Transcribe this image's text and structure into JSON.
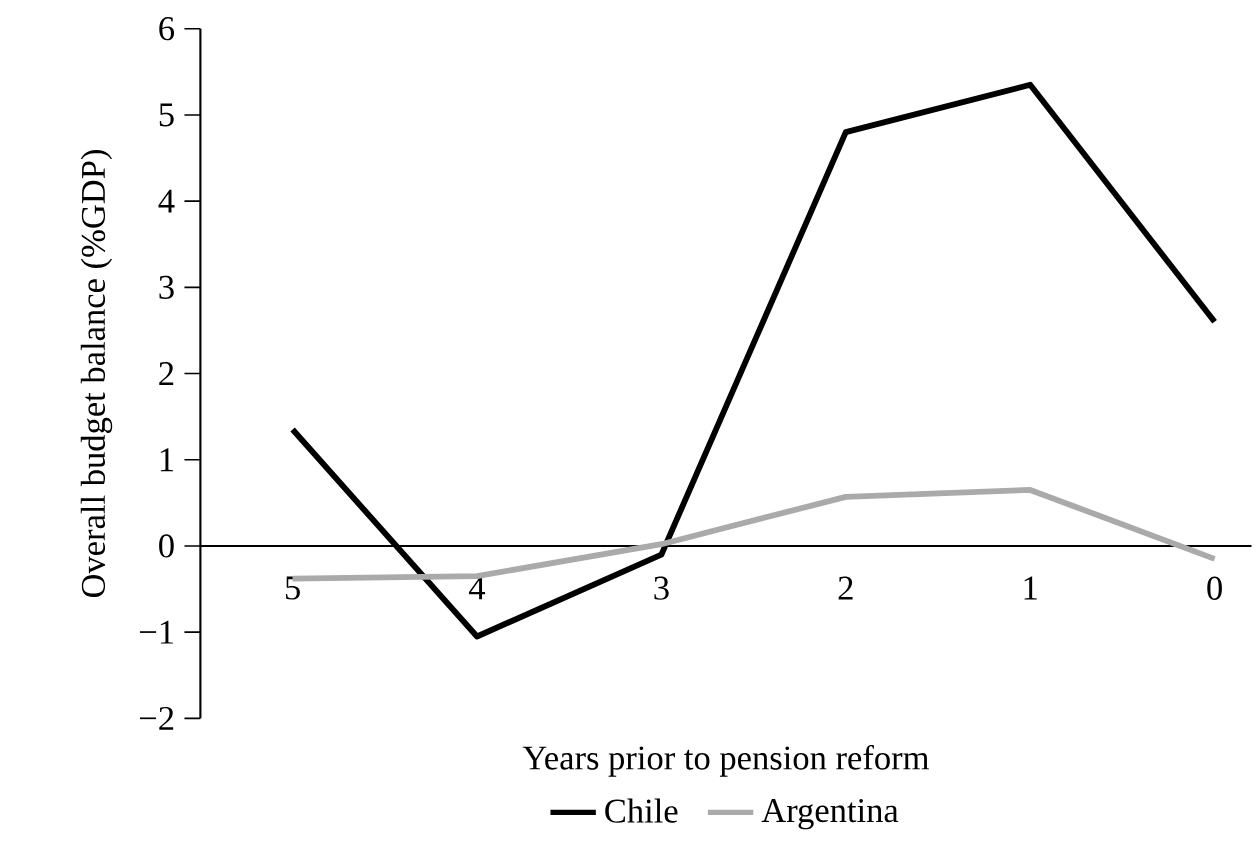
{
  "chart_data": {
    "type": "line",
    "xlabel": "Years prior to pension reform",
    "ylabel": "Overall budget balance (%GDP)",
    "categories": [
      "5",
      "4",
      "3",
      "2",
      "1",
      "0"
    ],
    "ylim": [
      -2,
      6
    ],
    "yticks": [
      {
        "value": -2,
        "label": "−2"
      },
      {
        "value": -1,
        "label": "−1"
      },
      0,
      1,
      2,
      3,
      4,
      5,
      6
    ],
    "series": [
      {
        "name": "Chile",
        "color": "#000000",
        "values": [
          1.35,
          -1.05,
          -0.1,
          4.8,
          5.35,
          2.6
        ]
      },
      {
        "name": "Argentina",
        "color": "#aaaaaa",
        "values": [
          -0.38,
          -0.35,
          0.02,
          0.57,
          0.65,
          -0.15
        ]
      }
    ],
    "legend": "bottom",
    "grid": false,
    "marker": "none",
    "line_style": "solid"
  }
}
